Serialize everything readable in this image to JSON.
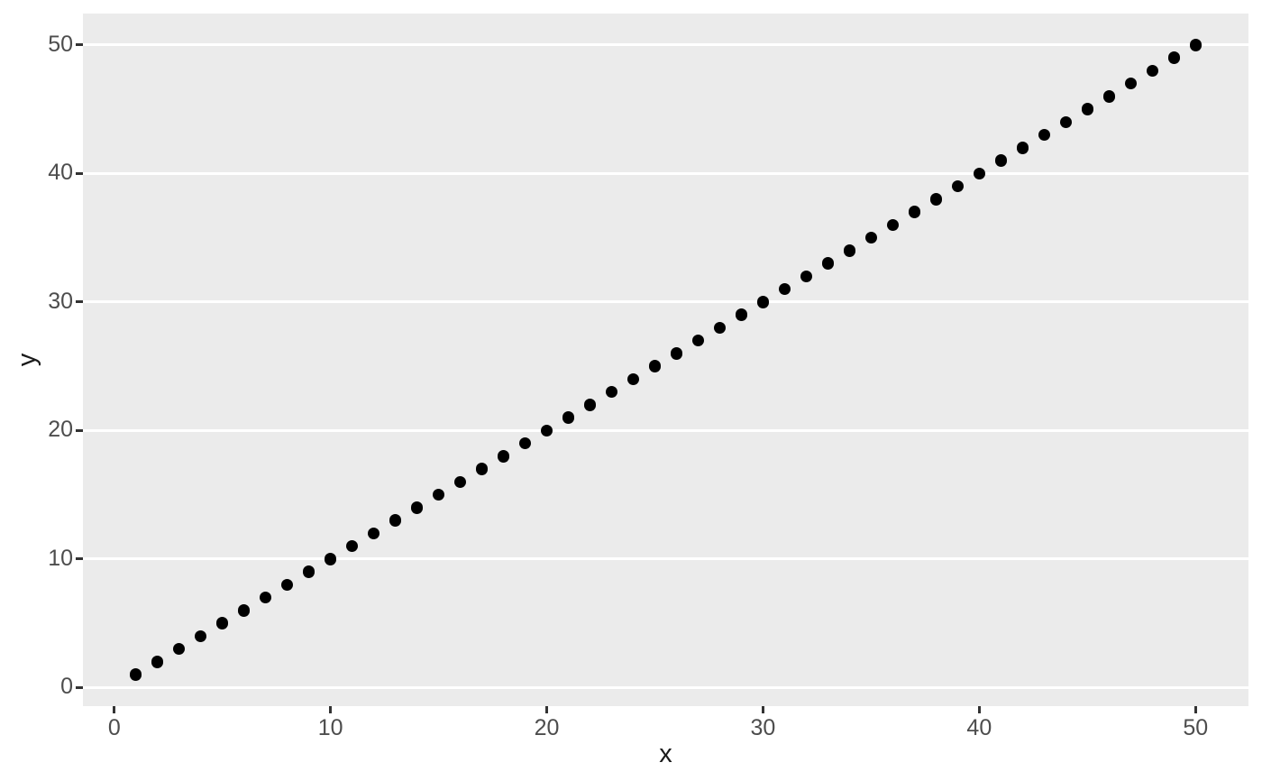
{
  "chart_data": {
    "type": "scatter",
    "title": "",
    "xlabel": "x",
    "ylabel": "y",
    "x": [
      1,
      2,
      3,
      4,
      5,
      6,
      7,
      8,
      9,
      10,
      11,
      12,
      13,
      14,
      15,
      16,
      17,
      18,
      19,
      20,
      21,
      22,
      23,
      24,
      25,
      26,
      27,
      28,
      29,
      30,
      31,
      32,
      33,
      34,
      35,
      36,
      37,
      38,
      39,
      40,
      41,
      42,
      43,
      44,
      45,
      46,
      47,
      48,
      49,
      50
    ],
    "y": [
      1,
      2,
      3,
      4,
      5,
      6,
      7,
      8,
      9,
      10,
      11,
      12,
      13,
      14,
      15,
      16,
      17,
      18,
      19,
      20,
      21,
      22,
      23,
      24,
      25,
      26,
      27,
      28,
      29,
      30,
      31,
      32,
      33,
      34,
      35,
      36,
      37,
      38,
      39,
      40,
      41,
      42,
      43,
      44,
      45,
      46,
      47,
      48,
      49,
      50
    ],
    "x_ticks": [
      0,
      10,
      20,
      30,
      40,
      50
    ],
    "y_ticks": [
      0,
      10,
      20,
      30,
      40,
      50
    ],
    "x_tick_labels": [
      "0",
      "10",
      "20",
      "30",
      "40",
      "50"
    ],
    "y_tick_labels": [
      "0",
      "10",
      "20",
      "30",
      "40",
      "50"
    ],
    "xlim": [
      -1.45,
      52.45
    ],
    "ylim": [
      -1.45,
      52.45
    ],
    "grid": "major-y-only",
    "legend_position": "none",
    "colors": {
      "panel_background": "#EBEBEB",
      "figure_background": "#FFFFFF",
      "gridline": "#FFFFFF",
      "point": "#000000",
      "tick_mark": "#333333",
      "tick_label": "#4D4D4D",
      "axis_title": "#1A1A1A"
    }
  }
}
